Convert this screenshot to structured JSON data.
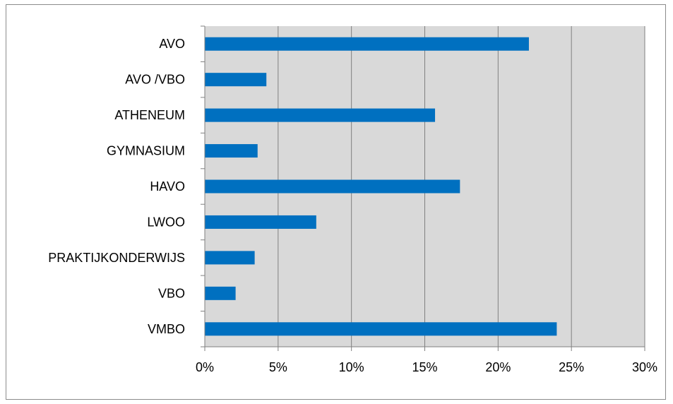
{
  "chart_data": {
    "type": "bar",
    "orientation": "horizontal",
    "categories": [
      "AVO",
      "AVO /VBO",
      "ATHENEUM",
      "GYMNASIUM",
      "HAVO",
      "LWOO",
      "PRAKTIJKONDERWIJS",
      "VBO",
      "VMBO"
    ],
    "values": [
      22.1,
      4.2,
      15.7,
      3.6,
      17.4,
      7.6,
      3.4,
      2.1,
      24.0
    ],
    "x_ticks": [
      "0%",
      "5%",
      "10%",
      "15%",
      "20%",
      "25%",
      "30%"
    ],
    "xlim": [
      0,
      30
    ],
    "grid": "vertical",
    "legend": "none",
    "colors": {
      "bar": "#0070c0",
      "plot_background": "#d9d9d9",
      "grid": "#808080",
      "axis": "#808080"
    }
  }
}
